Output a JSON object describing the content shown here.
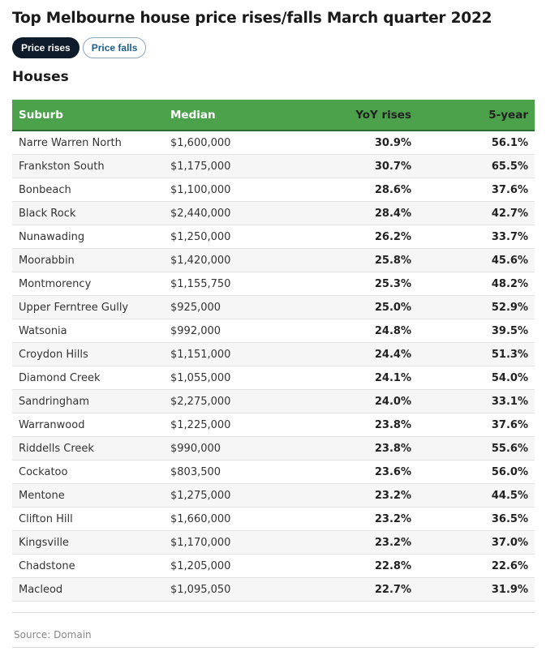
{
  "header": {
    "title": "Top Melbourne house price rises/falls March quarter 2022",
    "toggle": {
      "active_label": "Price rises",
      "inactive_label": "Price falls"
    },
    "section": "Houses"
  },
  "colors": {
    "header_bg": "#4ba24a",
    "active_pill": "#0d1b2a",
    "inactive_pill_text": "#1d5d8c"
  },
  "chart_data": {
    "type": "table",
    "columns": [
      "Suburb",
      "Median",
      "YoY rises",
      "5-year"
    ],
    "rows": [
      [
        "Narre Warren North",
        "$1,600,000",
        "30.9%",
        "56.1%"
      ],
      [
        "Frankston South",
        "$1,175,000",
        "30.7%",
        "65.5%"
      ],
      [
        "Bonbeach",
        "$1,100,000",
        "28.6%",
        "37.6%"
      ],
      [
        "Black Rock",
        "$2,440,000",
        "28.4%",
        "42.7%"
      ],
      [
        "Nunawading",
        "$1,250,000",
        "26.2%",
        "33.7%"
      ],
      [
        "Moorabbin",
        "$1,420,000",
        "25.8%",
        "45.6%"
      ],
      [
        "Montmorency",
        "$1,155,750",
        "25.3%",
        "48.2%"
      ],
      [
        "Upper Ferntree Gully",
        "$925,000",
        "25.0%",
        "52.9%"
      ],
      [
        "Watsonia",
        "$992,000",
        "24.8%",
        "39.5%"
      ],
      [
        "Croydon Hills",
        "$1,151,000",
        "24.4%",
        "51.3%"
      ],
      [
        "Diamond Creek",
        "$1,055,000",
        "24.1%",
        "54.0%"
      ],
      [
        "Sandringham",
        "$2,275,000",
        "24.0%",
        "33.1%"
      ],
      [
        "Warranwood",
        "$1,225,000",
        "23.8%",
        "37.6%"
      ],
      [
        "Riddells Creek",
        "$990,000",
        "23.8%",
        "55.6%"
      ],
      [
        "Cockatoo",
        "$803,500",
        "23.6%",
        "56.0%"
      ],
      [
        "Mentone",
        "$1,275,000",
        "23.2%",
        "44.5%"
      ],
      [
        "Clifton Hill",
        "$1,660,000",
        "23.2%",
        "36.5%"
      ],
      [
        "Kingsville",
        "$1,170,000",
        "23.2%",
        "37.0%"
      ],
      [
        "Chadstone",
        "$1,205,000",
        "22.8%",
        "22.6%"
      ],
      [
        "Macleod",
        "$1,095,050",
        "22.7%",
        "31.9%"
      ]
    ]
  },
  "footer": {
    "source": "Source: Domain"
  }
}
